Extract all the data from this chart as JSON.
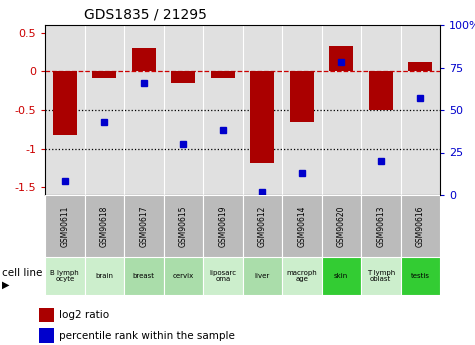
{
  "title": "GDS1835 / 21295",
  "samples": [
    "GSM90611",
    "GSM90618",
    "GSM90617",
    "GSM90615",
    "GSM90619",
    "GSM90612",
    "GSM90614",
    "GSM90620",
    "GSM90613",
    "GSM90616"
  ],
  "cell_lines": [
    "B lymph\nocyte",
    "brain",
    "breast",
    "cervix",
    "liposarc\noma",
    "liver",
    "macroph\nage",
    "skin",
    "T lymph\noblast",
    "testis"
  ],
  "cell_line_colors": [
    "#cceecc",
    "#cceecc",
    "#aaddaa",
    "#aaddaa",
    "#cceecc",
    "#aaddaa",
    "#cceecc",
    "#33cc33",
    "#cceecc",
    "#33cc33"
  ],
  "log2_ratio": [
    -0.82,
    -0.08,
    0.3,
    -0.15,
    -0.08,
    -1.18,
    -0.65,
    0.33,
    -0.5,
    0.12
  ],
  "percentile_rank": [
    8,
    43,
    66,
    30,
    38,
    2,
    13,
    78,
    20,
    57
  ],
  "bar_color": "#aa0000",
  "dot_color": "#0000cc",
  "ylim_left": [
    -1.6,
    0.6
  ],
  "ylim_right": [
    0,
    100
  ],
  "hline_y": [
    0,
    -0.5,
    -1.0
  ],
  "hline_styles": [
    "--",
    ":",
    ":"
  ],
  "hline_colors": [
    "#cc0000",
    "black",
    "black"
  ],
  "right_ticks": [
    0,
    25,
    50,
    75,
    100
  ],
  "right_tick_labels": [
    "0",
    "25",
    "50",
    "75",
    "100%"
  ],
  "left_ticks": [
    0.5,
    0,
    -0.5,
    -1.0,
    -1.5
  ],
  "left_tick_labels": [
    "0.5",
    "0",
    "-0.5",
    "-1",
    "-1.5"
  ],
  "legend_items": [
    "log2 ratio",
    "percentile rank within the sample"
  ],
  "legend_colors": [
    "#aa0000",
    "#0000cc"
  ],
  "cell_line_label": "cell line",
  "plot_bg_color": "#e0e0e0",
  "sample_bg_color": "#bbbbbb",
  "title_fontsize": 10
}
